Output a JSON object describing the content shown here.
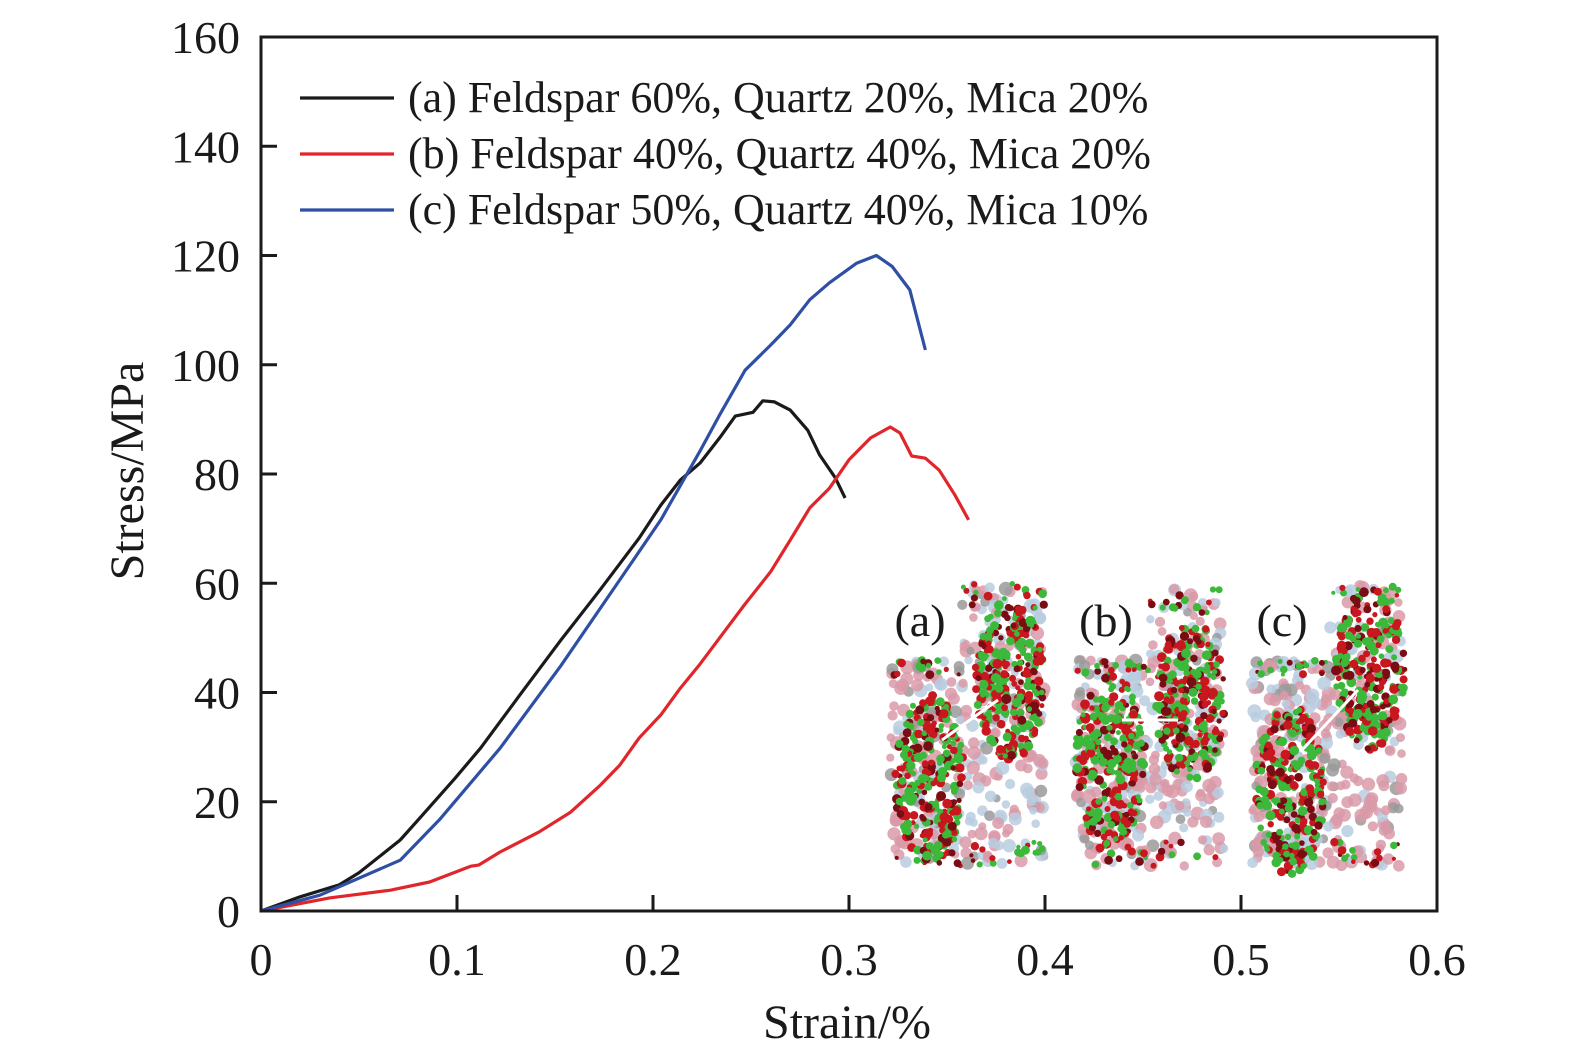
{
  "chart_data": {
    "type": "line",
    "title": "",
    "xlabel": "Strain/%",
    "ylabel": "Stress/MPa",
    "xlim": [
      0,
      0.6
    ],
    "ylim": [
      0,
      160
    ],
    "xticks": [
      0,
      0.1,
      0.2,
      0.3,
      0.4,
      0.5,
      0.6
    ],
    "xtick_labels": [
      "0",
      "0.1",
      "0.2",
      "0.3",
      "0.4",
      "0.5",
      "0.6"
    ],
    "yticks": [
      0,
      20,
      40,
      60,
      80,
      100,
      120,
      140,
      160
    ],
    "ytick_labels": [
      "0",
      "20",
      "40",
      "60",
      "80",
      "100",
      "120",
      "140",
      "160"
    ],
    "grid": false,
    "legend_position": "top-left",
    "series": [
      {
        "name": "(a) Feldspar 60%, Quartz 20%, Mica 20%",
        "color": "#1a1a1a",
        "x": [
          0,
          0.02,
          0.04,
          0.05,
          0.071,
          0.081,
          0.099,
          0.112,
          0.132,
          0.153,
          0.173,
          0.193,
          0.204,
          0.214,
          0.224,
          0.234,
          0.242,
          0.251,
          0.256,
          0.262,
          0.27,
          0.279,
          0.285,
          0.293,
          0.298
        ],
        "y": [
          0,
          2.6,
          4.8,
          7,
          13,
          17,
          24.3,
          29.8,
          39.5,
          49.6,
          58.8,
          68.3,
          74.3,
          78.9,
          82,
          86.6,
          90.6,
          91.3,
          93.4,
          93.2,
          91.7,
          88,
          83.5,
          79.3,
          75.6
        ]
      },
      {
        "name": "(b) Feldspar 40%, Quartz 40%, Mica 20%",
        "color": "#e0262b",
        "x": [
          0,
          0.035,
          0.066,
          0.086,
          0.107,
          0.111,
          0.122,
          0.142,
          0.158,
          0.173,
          0.183,
          0.193,
          0.204,
          0.214,
          0.224,
          0.234,
          0.247,
          0.26,
          0.27,
          0.28,
          0.29,
          0.3,
          0.311,
          0.321,
          0.326,
          0.332,
          0.339,
          0.346,
          0.354,
          0.361
        ],
        "y": [
          0,
          2.4,
          3.8,
          5.3,
          8.2,
          8.4,
          10.8,
          14.5,
          18.1,
          23,
          26.7,
          31.7,
          35.9,
          40.8,
          45.2,
          50,
          56.2,
          62.1,
          67.9,
          73.8,
          77.4,
          82.6,
          86.6,
          88.6,
          87.5,
          83.3,
          82.9,
          80.7,
          76.2,
          71.6
        ]
      },
      {
        "name": "(c) Feldspar 50%, Quartz 40%, Mica 10%",
        "color": "#2e4fa3",
        "x": [
          0,
          0.03,
          0.071,
          0.091,
          0.122,
          0.153,
          0.183,
          0.204,
          0.224,
          0.234,
          0.247,
          0.26,
          0.27,
          0.28,
          0.29,
          0.304,
          0.314,
          0.322,
          0.331,
          0.339
        ],
        "y": [
          0,
          2.9,
          9.3,
          16.7,
          29.8,
          44.9,
          60.6,
          71.6,
          84.2,
          90.8,
          99,
          103.6,
          107.3,
          111.9,
          115,
          118.6,
          120,
          118,
          113.7,
          102.7
        ]
      }
    ],
    "annotations": {
      "inset_labels": [
        "(a)",
        "(b)",
        "(c)"
      ],
      "inset_description": "Particle simulation images of failure patterns for specimens (a), (b), (c)",
      "particle_colors": {
        "feldspar": "#d99aa8",
        "quartz": "#b8cde0",
        "mica": "#9a9a9a",
        "crack_tension": "#3cb83a",
        "crack_shear": "#c8171e",
        "crack_dark": "#7a0d14"
      }
    }
  }
}
